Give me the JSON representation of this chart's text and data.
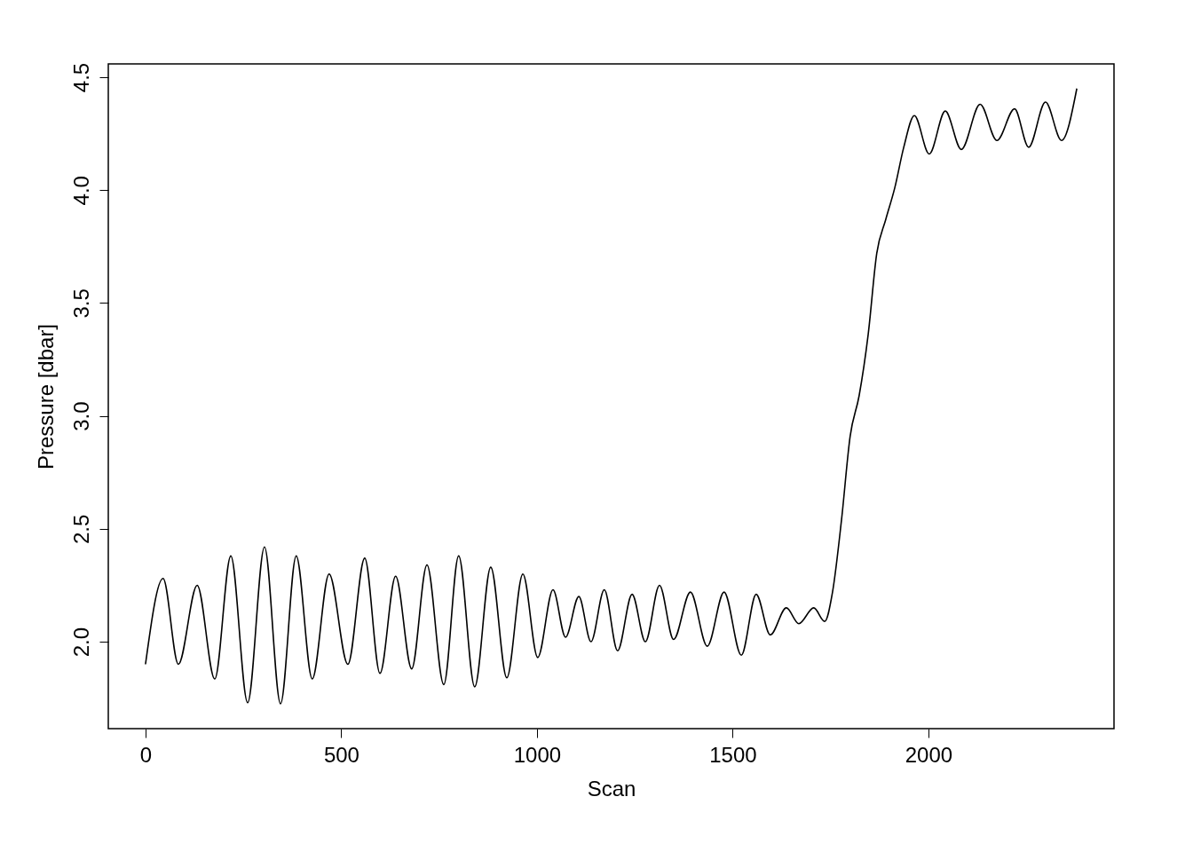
{
  "chart_data": {
    "type": "line",
    "xlabel": "Scan",
    "ylabel": "Pressure [dbar]",
    "x": [
      0,
      45,
      84,
      132,
      177,
      218,
      261,
      304,
      345,
      385,
      426,
      469,
      517,
      560,
      599,
      639,
      680,
      719,
      762,
      800,
      841,
      882,
      923,
      964,
      1002,
      1041,
      1073,
      1107,
      1138,
      1172,
      1206,
      1243,
      1277,
      1313,
      1349,
      1392,
      1435,
      1478,
      1522,
      1560,
      1596,
      1637,
      1669,
      1707,
      1735,
      1755,
      1778,
      1800,
      1823,
      1846,
      1868,
      1891,
      1914,
      1937,
      1964,
      2002,
      2043,
      2084,
      2132,
      2175,
      2220,
      2256,
      2299,
      2340,
      2379
    ],
    "series": [
      {
        "color": "#000000",
        "values": [
          1.9,
          2.28,
          1.9,
          2.25,
          1.835,
          2.38,
          1.73,
          2.42,
          1.725,
          2.38,
          1.835,
          2.3,
          1.9,
          2.37,
          1.86,
          2.29,
          1.88,
          2.34,
          1.81,
          2.38,
          1.8,
          2.33,
          1.84,
          2.3,
          1.93,
          2.23,
          2.02,
          2.2,
          2.0,
          2.23,
          1.96,
          2.21,
          2.0,
          2.25,
          2.01,
          2.22,
          1.98,
          2.22,
          1.94,
          2.21,
          2.03,
          2.15,
          2.08,
          2.15,
          2.09,
          2.22,
          2.54,
          2.91,
          3.09,
          3.36,
          3.72,
          3.87,
          4.01,
          4.19,
          4.33,
          4.16,
          4.35,
          4.18,
          4.38,
          4.22,
          4.36,
          4.19,
          4.39,
          4.22,
          4.45
        ]
      }
    ],
    "xlim": [
      -95,
      2474
    ],
    "ylim": [
      1.615,
      4.559
    ],
    "xticks": [
      0,
      500,
      1000,
      1500,
      2000
    ],
    "yticks": [
      {
        "value": 2,
        "label": "2.0"
      },
      {
        "value": 2.5,
        "label": "2.5"
      },
      {
        "value": 3,
        "label": "3.0"
      },
      {
        "value": 3.5,
        "label": "3.5"
      },
      {
        "value": 4,
        "label": "4.0"
      },
      {
        "value": 4.5,
        "label": "4.5"
      }
    ],
    "grid": false,
    "marker": "none",
    "line_style": "solid"
  }
}
